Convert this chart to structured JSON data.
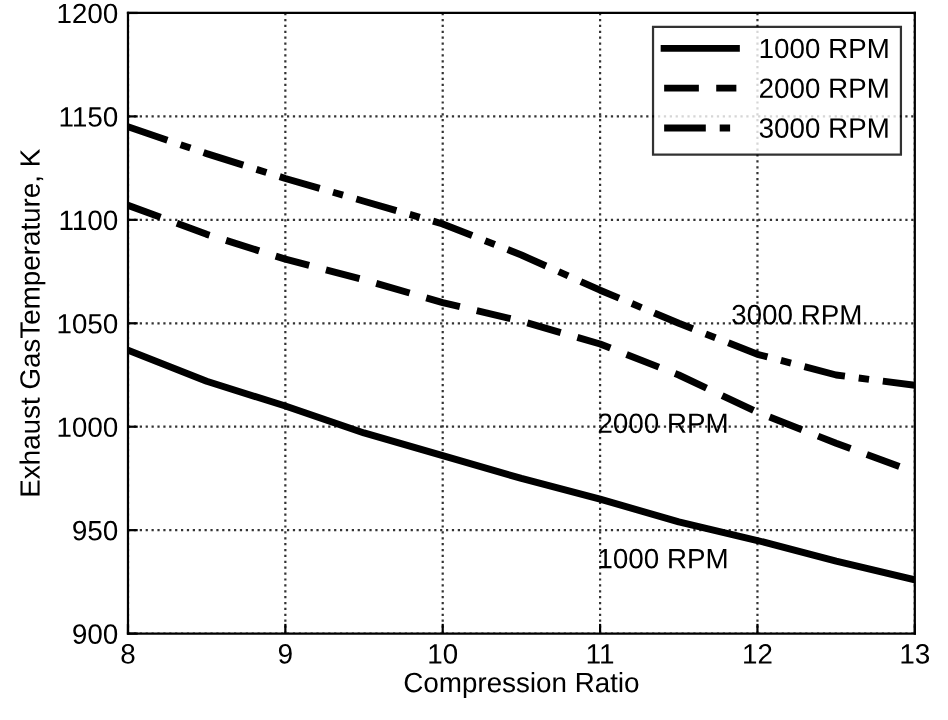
{
  "chart_data": {
    "type": "line",
    "xlabel": "Compression Ratio",
    "ylabel": "Exhaust GasTemperature, K",
    "x": [
      8,
      8.5,
      9,
      9.5,
      10,
      10.5,
      11,
      11.5,
      12,
      12.5,
      13
    ],
    "series": [
      {
        "name": "1000 RPM",
        "color": "#000000",
        "line_style": "solid",
        "values": [
          1037,
          1022,
          1010,
          997,
          986,
          975,
          965,
          954,
          945,
          935,
          926
        ]
      },
      {
        "name": "2000 RPM",
        "color": "#000000",
        "line_style": "dashed",
        "values": [
          1107,
          1093,
          1081,
          1071,
          1060,
          1051,
          1040,
          1025,
          1007,
          992,
          978
        ]
      },
      {
        "name": "3000 RPM",
        "color": "#000000",
        "line_style": "dashdot",
        "values": [
          1145,
          1132,
          1120,
          1109,
          1098,
          1083,
          1066,
          1050,
          1035,
          1025,
          1020
        ]
      }
    ],
    "annotations": [
      "3000 RPM",
      "2000 RPM",
      "1000 RPM"
    ],
    "xlim": [
      8,
      13
    ],
    "ylim": [
      900,
      1200
    ],
    "xticks": [
      8,
      9,
      10,
      11,
      12,
      13
    ],
    "yticks": [
      900,
      950,
      1000,
      1050,
      1100,
      1150,
      1200
    ],
    "grid": true,
    "legend": "top right"
  }
}
